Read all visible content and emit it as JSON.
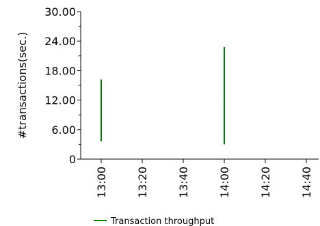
{
  "chart_data": {
    "type": "line",
    "title": "",
    "xlabel": "",
    "ylabel": "#transactions(sec.)",
    "ylim": [
      0,
      30
    ],
    "y_ticks": [
      "0",
      "6.00",
      "12.00",
      "18.00",
      "24.00",
      "30.00"
    ],
    "x_ticks": [
      "13:00",
      "13:20",
      "13:40",
      "14:00",
      "14:20",
      "14:40"
    ],
    "xlim": [
      "13:00",
      "14:40"
    ],
    "grid": false,
    "legend_position": "bottom",
    "series": [
      {
        "name": "Transaction throughput",
        "color": "#008000",
        "segments": [
          {
            "x": "13:00",
            "y_from": 3.6,
            "y_to": 16.2
          },
          {
            "x": "14:00",
            "y_from": 3.0,
            "y_to": 12.6
          },
          {
            "x": "14:00",
            "y_from": 12.6,
            "y_to": 22.8
          }
        ]
      }
    ]
  }
}
